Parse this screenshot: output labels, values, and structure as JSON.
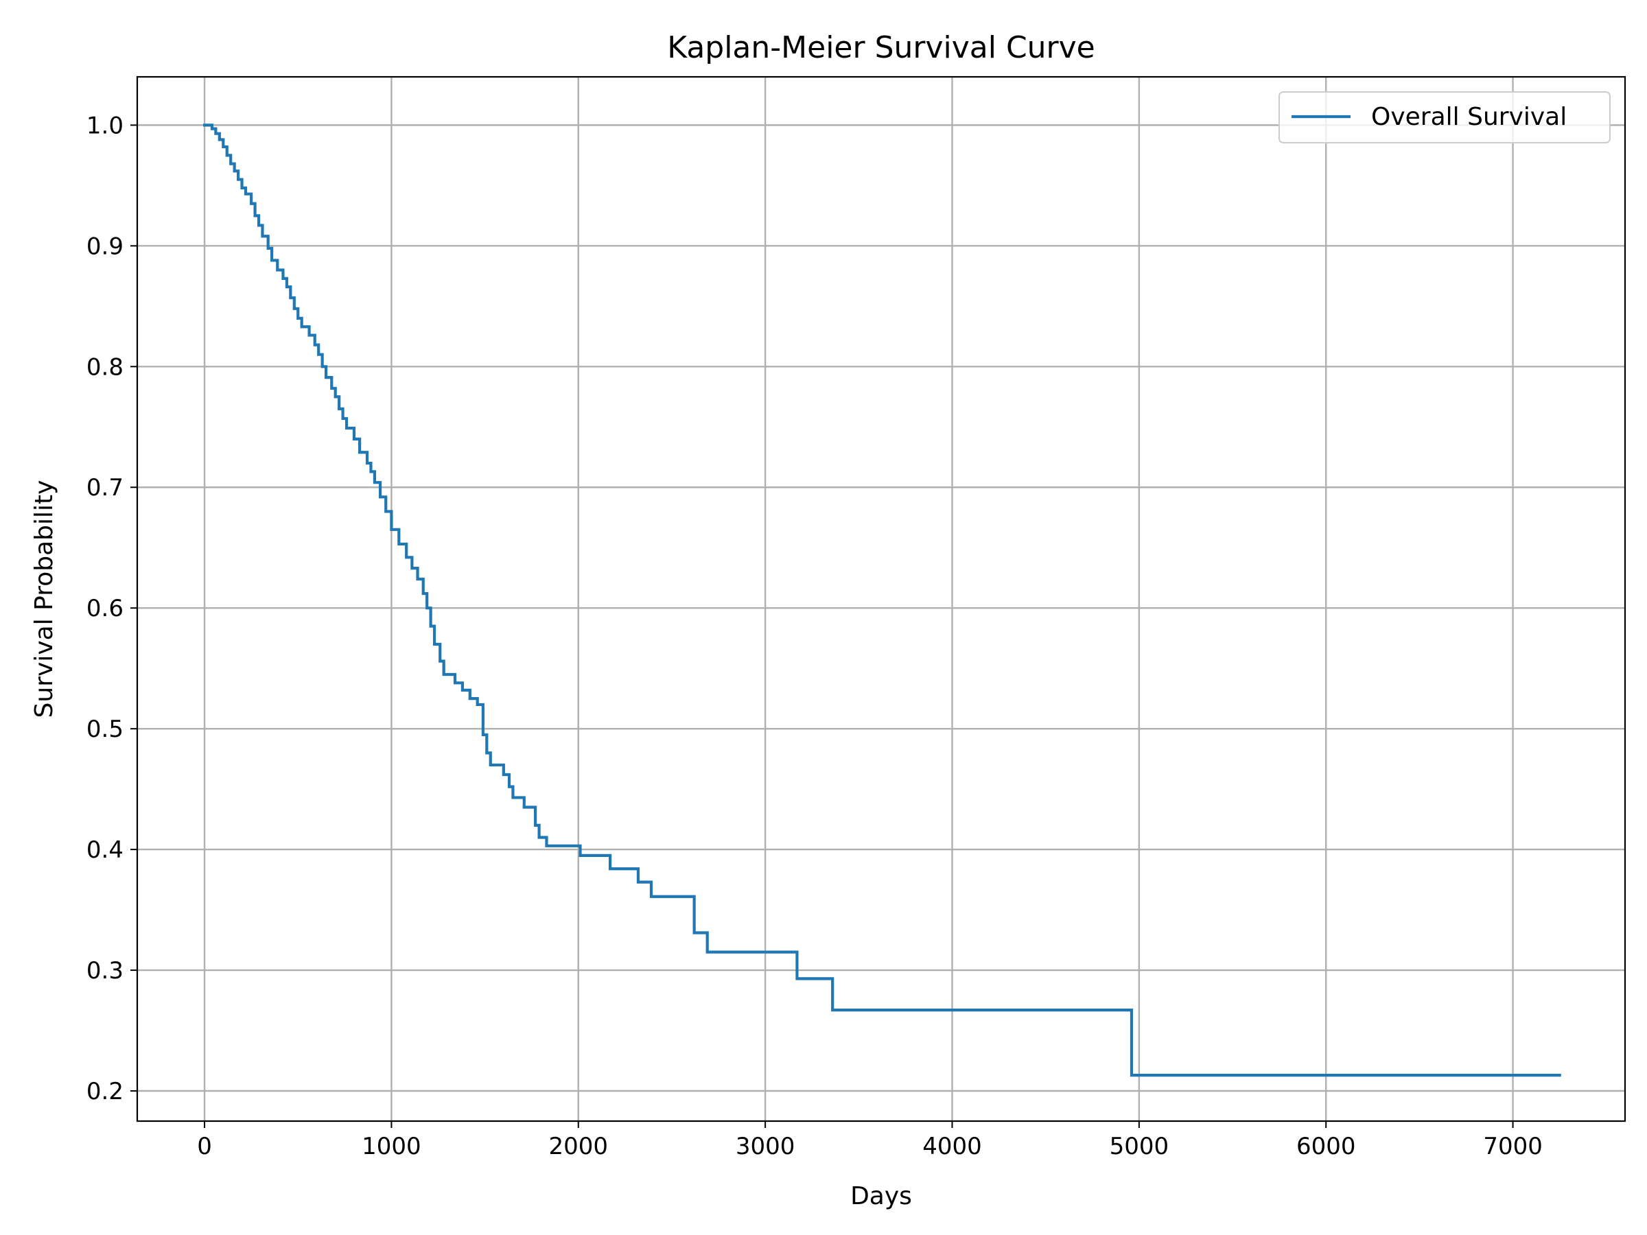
{
  "chart_data": {
    "type": "line",
    "title": "Kaplan-Meier Survival Curve",
    "xlabel": "Days",
    "ylabel": "Survival Probability",
    "xlim": [
      -360,
      7600
    ],
    "ylim": [
      0.175,
      1.04
    ],
    "x_ticks": [
      0,
      1000,
      2000,
      3000,
      4000,
      5000,
      6000,
      7000
    ],
    "y_ticks": [
      0.2,
      0.3,
      0.4,
      0.5,
      0.6,
      0.7,
      0.8,
      0.9,
      1.0
    ],
    "x_tick_labels": [
      "0",
      "1000",
      "2000",
      "3000",
      "4000",
      "5000",
      "6000",
      "7000"
    ],
    "y_tick_labels": [
      "0.2",
      "0.3",
      "0.4",
      "0.5",
      "0.6",
      "0.7",
      "0.8",
      "0.9",
      "1.0"
    ],
    "grid": true,
    "legend_position": "top-right",
    "step": "post",
    "series": [
      {
        "name": "Overall Survival",
        "color": "#1f77b4",
        "x": [
          0,
          40,
          60,
          80,
          100,
          120,
          140,
          160,
          180,
          200,
          220,
          250,
          270,
          290,
          310,
          340,
          360,
          390,
          420,
          440,
          460,
          480,
          500,
          520,
          560,
          590,
          610,
          630,
          650,
          680,
          700,
          720,
          740,
          760,
          800,
          830,
          870,
          890,
          910,
          940,
          970,
          1000,
          1040,
          1080,
          1110,
          1140,
          1170,
          1190,
          1210,
          1230,
          1260,
          1280,
          1340,
          1380,
          1420,
          1460,
          1490,
          1510,
          1530,
          1600,
          1630,
          1650,
          1710,
          1770,
          1790,
          1830,
          2010,
          2170,
          2320,
          2390,
          2620,
          2690,
          3170,
          3360,
          4960,
          7250
        ],
        "y": [
          1.0,
          0.997,
          0.993,
          0.988,
          0.982,
          0.975,
          0.968,
          0.962,
          0.955,
          0.948,
          0.943,
          0.935,
          0.925,
          0.917,
          0.908,
          0.898,
          0.888,
          0.88,
          0.873,
          0.866,
          0.857,
          0.848,
          0.84,
          0.833,
          0.826,
          0.818,
          0.81,
          0.8,
          0.791,
          0.782,
          0.775,
          0.765,
          0.757,
          0.749,
          0.74,
          0.729,
          0.72,
          0.713,
          0.704,
          0.692,
          0.68,
          0.665,
          0.653,
          0.642,
          0.633,
          0.624,
          0.612,
          0.6,
          0.585,
          0.57,
          0.556,
          0.545,
          0.538,
          0.532,
          0.525,
          0.52,
          0.495,
          0.48,
          0.47,
          0.462,
          0.452,
          0.443,
          0.435,
          0.42,
          0.41,
          0.403,
          0.395,
          0.384,
          0.373,
          0.361,
          0.331,
          0.315,
          0.293,
          0.267,
          0.213,
          0.213
        ]
      }
    ]
  }
}
